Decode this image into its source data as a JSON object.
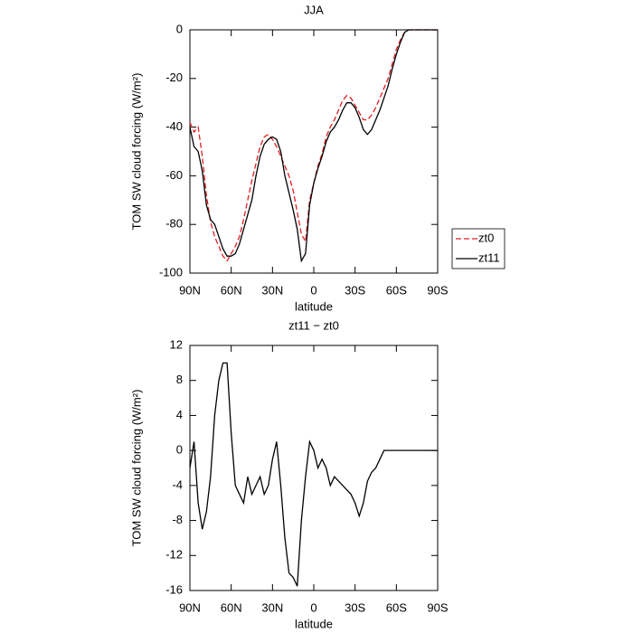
{
  "chart_data": [
    {
      "type": "line",
      "title": "JJA",
      "x_label": "latitude",
      "y_label": "TOM SW cloud forcing (W/m²)",
      "x": [
        90,
        87,
        84,
        81,
        78,
        75,
        72,
        69,
        66,
        63,
        60,
        57,
        54,
        51,
        48,
        45,
        42,
        39,
        36,
        33,
        30,
        27,
        24,
        21,
        18,
        15,
        12,
        9,
        6,
        3,
        0,
        -3,
        -6,
        -9,
        -12,
        -15,
        -18,
        -21,
        -24,
        -27,
        -30,
        -33,
        -36,
        -39,
        -42,
        -45,
        -48,
        -51,
        -54,
        -57,
        -60,
        -63,
        -66,
        -69,
        -72,
        -75,
        -78,
        -81,
        -84,
        -87,
        -90
      ],
      "series": [
        {
          "name": "zt0",
          "color": "#e02020",
          "line_style": "dashed",
          "values": [
            -38,
            -42,
            -40,
            -52,
            -68,
            -79,
            -85,
            -89,
            -93,
            -95,
            -92,
            -89,
            -85,
            -78,
            -70,
            -62,
            -55,
            -48,
            -44,
            -43,
            -45,
            -48,
            -52,
            -56,
            -60,
            -66,
            -75,
            -84,
            -87,
            -70,
            -63,
            -56,
            -51,
            -44,
            -40,
            -37,
            -33,
            -29,
            -27,
            -28,
            -31,
            -34,
            -37,
            -37,
            -35,
            -32,
            -28,
            -24,
            -20,
            -14,
            -8,
            -4,
            -1,
            0,
            0,
            0,
            0,
            0,
            0,
            0,
            0
          ]
        },
        {
          "name": "zt11",
          "color": "#000000",
          "line_style": "solid",
          "values": [
            -40,
            -48,
            -50,
            -58,
            -72,
            -78,
            -80,
            -85,
            -90,
            -93,
            -93,
            -92,
            -88,
            -82,
            -76,
            -70,
            -60,
            -52,
            -47,
            -45,
            -44,
            -45,
            -50,
            -60,
            -67,
            -74,
            -82,
            -95,
            -92,
            -72,
            -63,
            -57,
            -52,
            -46,
            -42,
            -40,
            -37,
            -33,
            -30,
            -30,
            -32,
            -36,
            -41,
            -43,
            -41,
            -37,
            -33,
            -28,
            -23,
            -16,
            -10,
            -5,
            -1,
            0,
            0,
            0,
            0,
            0,
            0,
            0,
            0
          ]
        }
      ],
      "xlim": [
        90,
        -90
      ],
      "xticks": [
        {
          "value": 90,
          "label": "90N"
        },
        {
          "value": 60,
          "label": "60N"
        },
        {
          "value": 30,
          "label": "30N"
        },
        0,
        {
          "value": -30,
          "label": "30S"
        },
        {
          "value": -60,
          "label": "60S"
        },
        {
          "value": -90,
          "label": "90S"
        }
      ],
      "ylim": [
        -100,
        0
      ],
      "yticks": [
        -100,
        -80,
        -60,
        -40,
        -20,
        0
      ],
      "legend": "right"
    },
    {
      "type": "line",
      "title": "zt11 − zt0",
      "x_label": "latitude",
      "y_label": "TOM SW cloud forcing (W/m²)",
      "x": [
        90,
        87,
        84,
        81,
        78,
        75,
        72,
        69,
        66,
        63,
        60,
        57,
        54,
        51,
        48,
        45,
        42,
        39,
        36,
        33,
        30,
        27,
        24,
        21,
        18,
        15,
        12,
        9,
        6,
        3,
        0,
        -3,
        -6,
        -9,
        -12,
        -15,
        -18,
        -21,
        -24,
        -27,
        -30,
        -33,
        -36,
        -39,
        -42,
        -45,
        -48,
        -51,
        -54,
        -57,
        -60,
        -63,
        -66,
        -69,
        -72,
        -75,
        -78,
        -81,
        -84,
        -87,
        -90
      ],
      "color": "#000000",
      "values": [
        -2,
        1,
        -6,
        -9,
        -7,
        -3,
        4,
        8,
        10,
        10,
        2,
        -4,
        -5,
        -6,
        -3,
        -5,
        -4,
        -3,
        -5,
        -4,
        -1,
        1,
        -4,
        -10,
        -14,
        -14.5,
        -15.5,
        -8,
        -3,
        1,
        0,
        -2,
        -1,
        -2,
        -4,
        -3,
        -3.5,
        -4,
        -4.5,
        -5,
        -6,
        -7.5,
        -6,
        -3.5,
        -2.5,
        -2,
        -1,
        0,
        0,
        0,
        0,
        0,
        0,
        0,
        0,
        0,
        0,
        0,
        0,
        0,
        0
      ],
      "xlim": [
        90,
        -90
      ],
      "xticks": [
        {
          "value": 90,
          "label": "90N"
        },
        {
          "value": 60,
          "label": "60N"
        },
        {
          "value": 30,
          "label": "30N"
        },
        0,
        {
          "value": -30,
          "label": "30S"
        },
        {
          "value": -60,
          "label": "60S"
        },
        {
          "value": -90,
          "label": "90S"
        }
      ],
      "ylim": [
        -16,
        12
      ],
      "yticks": [
        -16,
        -12,
        -8,
        -4,
        0,
        4,
        8,
        12
      ]
    }
  ]
}
